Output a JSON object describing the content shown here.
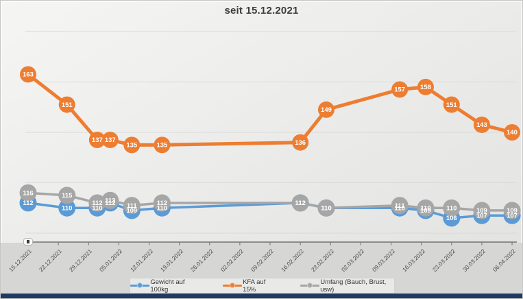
{
  "title": "seit 15.12.2021",
  "chart_data": {
    "type": "line",
    "title": "seit 15.12.2021",
    "x_axis": {
      "type": "date",
      "tick_labels": [
        "15.12.2021",
        "22.12.2021",
        "29.12.2021",
        "05.01.2022",
        "12.01.2022",
        "19.01.2022",
        "26.01.2022",
        "02.02.2022",
        "09.02.2022",
        "16.02.2022",
        "23.02.2022",
        "02.03.2022",
        "09.03.2022",
        "16.03.2022",
        "23.03.2022",
        "30.03.2022",
        "06.04.2022"
      ]
    },
    "y_axis": {
      "labels_visible": false,
      "gridline_values": [
        100,
        120,
        140,
        160,
        180
      ]
    },
    "x_days": [
      0,
      9,
      16,
      19,
      24,
      31,
      63,
      69,
      86,
      92,
      98,
      105,
      112
    ],
    "series": [
      {
        "name": "Gewicht auf 100kg",
        "color": "#5b9bd5",
        "values": [
          112,
          110,
          110,
          112,
          109,
          110,
          112,
          110,
          110,
          109,
          106,
          107,
          107
        ]
      },
      {
        "name": "KFA auf 15%",
        "color": "#ed7d31",
        "values": [
          163,
          151,
          137,
          137,
          135,
          135,
          136,
          149,
          157,
          158,
          151,
          143,
          140
        ]
      },
      {
        "name": "Umfang (Bauch, Brust, usw)",
        "color": "#a6a6a6",
        "values": [
          116,
          115,
          112,
          113,
          111,
          112,
          112,
          110,
          111,
          110,
          110,
          109,
          109
        ]
      }
    ],
    "legend_position": "bottom",
    "grid": true
  }
}
